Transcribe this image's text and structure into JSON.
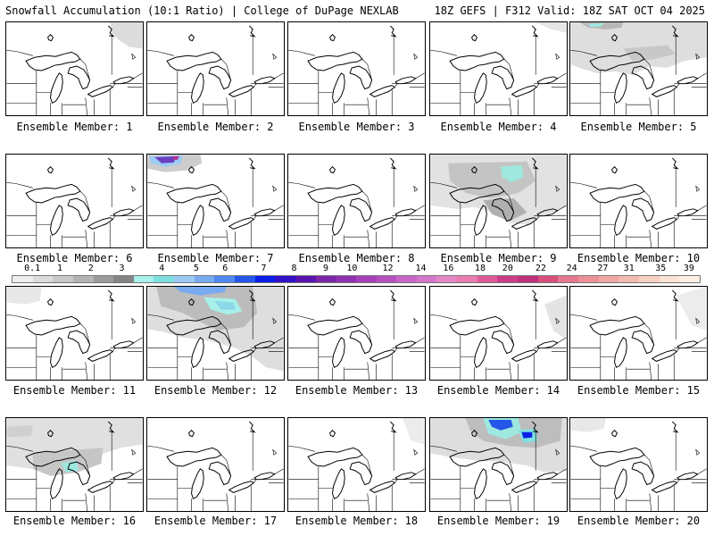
{
  "header": {
    "left": "Snowfall Accumulation (10:1 Ratio) | College of DuPage NEXLAB",
    "right": "18Z GEFS | F312 Valid: 18Z SAT OCT 04 2025"
  },
  "members": [
    {
      "label": "Ensemble Member: 1"
    },
    {
      "label": "Ensemble Member: 2"
    },
    {
      "label": "Ensemble Member: 3"
    },
    {
      "label": "Ensemble Member: 4"
    },
    {
      "label": "Ensemble Member: 5"
    },
    {
      "label": "Ensemble Member: 6"
    },
    {
      "label": "Ensemble Member: 7"
    },
    {
      "label": "Ensemble Member: 8"
    },
    {
      "label": "Ensemble Member: 9"
    },
    {
      "label": "Ensemble Member: 10"
    },
    {
      "label": "Ensemble Member: 11"
    },
    {
      "label": "Ensemble Member: 12"
    },
    {
      "label": "Ensemble Member: 13"
    },
    {
      "label": "Ensemble Member: 14"
    },
    {
      "label": "Ensemble Member: 15"
    },
    {
      "label": "Ensemble Member: 16"
    },
    {
      "label": "Ensemble Member: 17"
    },
    {
      "label": "Ensemble Member: 18"
    },
    {
      "label": "Ensemble Member: 19"
    },
    {
      "label": "Ensemble Member: 20"
    }
  ],
  "colorbar": {
    "ticks": [
      "0.1",
      "1",
      "2",
      "3",
      "4",
      "5",
      "6",
      "7",
      "8",
      "9",
      "10",
      "12",
      "14",
      "16",
      "18",
      "20",
      "22",
      "24",
      "27",
      "31",
      "35",
      "39"
    ],
    "colors": [
      "#eeeeee",
      "#dcdcdc",
      "#c8c8c8",
      "#b4b4b4",
      "#9a9a9a",
      "#848484",
      "#a8f0ea",
      "#7ee0e0",
      "#9ccaf4",
      "#78acf0",
      "#4f88ee",
      "#2456e8",
      "#0a1ee6",
      "#3010c8",
      "#5a14b0",
      "#7a26a8",
      "#9030b0",
      "#a440b8",
      "#b652c0",
      "#c866c8",
      "#d478cc",
      "#e488c8",
      "#ea7cb0",
      "#de5a98",
      "#cc3c88",
      "#c0307c",
      "#d8507c",
      "#e87890",
      "#ee9098",
      "#f0a8a4",
      "#f4bcb0",
      "#f8d0c0",
      "#fce2d4",
      "#fff0e6"
    ]
  }
}
